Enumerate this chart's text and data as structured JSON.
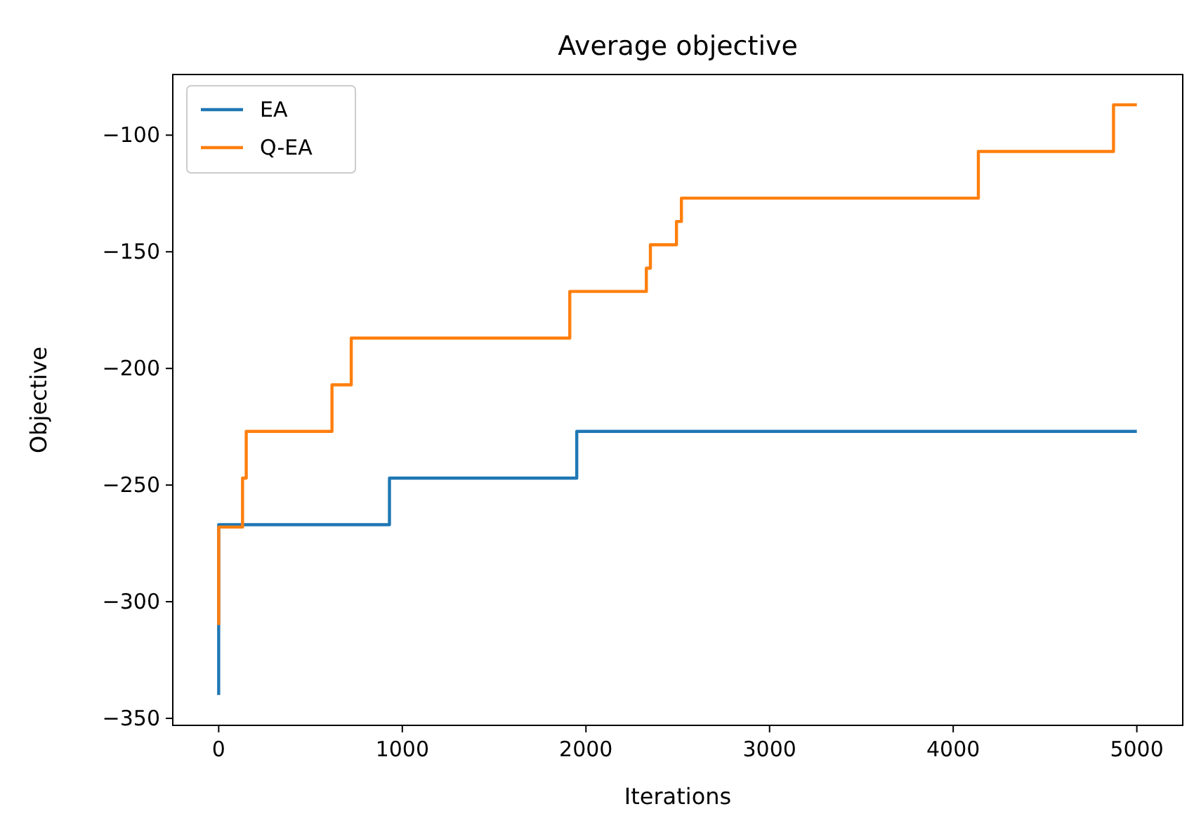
{
  "chart_data": {
    "type": "step",
    "title": "Average objective",
    "xlabel": "Iterations",
    "ylabel": "Objective",
    "xlim": [
      -250,
      5250
    ],
    "ylim": [
      -353,
      -74
    ],
    "xticks": [
      0,
      1000,
      2000,
      3000,
      4000,
      5000
    ],
    "yticks": [
      -350,
      -300,
      -250,
      -200,
      -150,
      -100
    ],
    "legend": "top left",
    "grid": false,
    "series": [
      {
        "name": "EA",
        "color": "#1f77b4",
        "x": [
          0,
          0,
          930,
          1950,
          5000
        ],
        "values": [
          -340,
          -267,
          -247,
          -227,
          -227
        ]
      },
      {
        "name": "Q-EA",
        "color": "#ff7f0e",
        "x": [
          0,
          0,
          130,
          150,
          617,
          722,
          1912,
          2329,
          2351,
          2493,
          2520,
          4137,
          4873,
          5000
        ],
        "values": [
          -310,
          -268,
          -247,
          -227,
          -207,
          -187,
          -167,
          -157,
          -147,
          -137,
          -127,
          -107,
          -87,
          -87
        ]
      }
    ]
  }
}
